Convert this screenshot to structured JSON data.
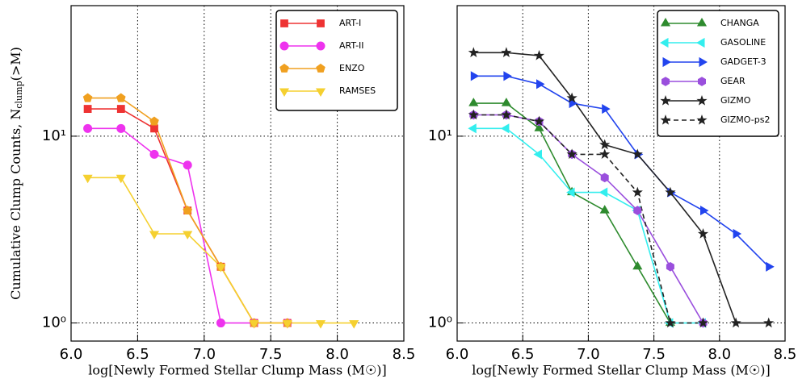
{
  "chart_data": [
    {
      "type": "line",
      "xlabel": "log[Newly Formed Stellar Clump Mass (M☉)]",
      "ylabel": {
        "text": "Cumulative Clump Counts,  N",
        "sub": "clump",
        "tail": "(>M)"
      },
      "xlim": [
        6.0,
        8.5
      ],
      "ylim": [
        0.8,
        50
      ],
      "log_y": true,
      "grid": true,
      "legend": "upper right",
      "xticks": [
        {
          "value": 6.0,
          "label": "6.0"
        },
        {
          "value": 6.5,
          "label": "6.5"
        },
        {
          "value": 7.0,
          "label": "7.0"
        },
        {
          "value": 7.5,
          "label": "7.5"
        },
        {
          "value": 8.0,
          "label": "8.0"
        },
        {
          "value": 8.5,
          "label": "8.5"
        }
      ],
      "yticks": [
        {
          "value": 1,
          "label": "10⁰"
        },
        {
          "value": 10,
          "label": "10¹"
        }
      ],
      "series": [
        {
          "name": "ART-I",
          "color": "#ee3333",
          "marker": "square",
          "x": [
            6.125,
            6.375,
            6.625,
            6.875,
            7.125,
            7.375,
            7.625
          ],
          "values": [
            14,
            14,
            11,
            4,
            2,
            1,
            1
          ]
        },
        {
          "name": "ART-II",
          "color": "#ee33ee",
          "marker": "circle",
          "x": [
            6.125,
            6.375,
            6.625,
            6.875,
            7.125,
            7.375,
            7.625
          ],
          "values": [
            11,
            11,
            8,
            7,
            1,
            1,
            1
          ]
        },
        {
          "name": "ENZO",
          "color": "#f0a020",
          "marker": "pentagon",
          "x": [
            6.125,
            6.375,
            6.625,
            6.875,
            7.125,
            7.375,
            7.625
          ],
          "values": [
            16,
            16,
            12,
            4,
            2,
            1,
            1
          ]
        },
        {
          "name": "RAMSES",
          "color": "#f5d030",
          "marker": "triangle-down",
          "x": [
            6.125,
            6.375,
            6.625,
            6.875,
            7.125,
            7.375,
            7.625,
            7.875,
            8.125
          ],
          "values": [
            6,
            6,
            3,
            3,
            2,
            1,
            1,
            1,
            1
          ]
        }
      ]
    },
    {
      "type": "line",
      "xlabel": "log[Newly Formed Stellar Clump Mass (M☉)]",
      "xlim": [
        6.0,
        8.5
      ],
      "ylim": [
        0.8,
        50
      ],
      "log_y": true,
      "grid": true,
      "legend": "upper right",
      "xticks": [
        {
          "value": 6.0,
          "label": "6.0"
        },
        {
          "value": 6.5,
          "label": "6.5"
        },
        {
          "value": 7.0,
          "label": "7.0"
        },
        {
          "value": 7.5,
          "label": "7.5"
        },
        {
          "value": 8.0,
          "label": "8.0"
        },
        {
          "value": 8.5,
          "label": "8.5"
        }
      ],
      "yticks": [
        {
          "value": 1,
          "label": "10⁰"
        },
        {
          "value": 10,
          "label": "10¹"
        }
      ],
      "series": [
        {
          "name": "CHANGA",
          "color": "#2e8b2e",
          "marker": "triangle-up",
          "x": [
            6.125,
            6.375,
            6.625,
            6.875,
            7.125,
            7.375,
            7.625
          ],
          "values": [
            15,
            15,
            11,
            5,
            4,
            2,
            1
          ]
        },
        {
          "name": "GASOLINE",
          "color": "#33eeee",
          "marker": "triangle-left",
          "x": [
            6.125,
            6.375,
            6.625,
            6.875,
            7.125,
            7.375,
            7.625,
            7.875
          ],
          "values": [
            11,
            11,
            8,
            5,
            5,
            4,
            1,
            1
          ]
        },
        {
          "name": "GADGET-3",
          "color": "#2244ee",
          "marker": "triangle-right",
          "x": [
            6.125,
            6.375,
            6.625,
            6.875,
            7.125,
            7.375,
            7.625,
            7.875,
            8.125,
            8.375
          ],
          "values": [
            21,
            21,
            19,
            15,
            14,
            8,
            5,
            4,
            3,
            2
          ]
        },
        {
          "name": "GEAR",
          "color": "#9a4fdd",
          "marker": "hexagon",
          "x": [
            6.125,
            6.375,
            6.625,
            6.875,
            7.125,
            7.375,
            7.625,
            7.875
          ],
          "values": [
            13,
            13,
            12,
            8,
            6,
            4,
            2,
            1
          ]
        },
        {
          "name": "GIZMO",
          "color": "#222222",
          "marker": "star",
          "x": [
            6.125,
            6.375,
            6.625,
            6.875,
            7.125,
            7.375,
            7.625,
            7.875,
            8.125,
            8.375
          ],
          "values": [
            28,
            28,
            27,
            16,
            9,
            8,
            5,
            3,
            1,
            1
          ]
        },
        {
          "name": "GIZMO-ps2",
          "color": "#222222",
          "marker": "star",
          "linestyle": "dashed",
          "x": [
            6.125,
            6.375,
            6.625,
            6.875,
            7.125,
            7.375,
            7.625,
            7.875
          ],
          "values": [
            13,
            13,
            12,
            8,
            8,
            5,
            1,
            1
          ]
        }
      ]
    }
  ]
}
